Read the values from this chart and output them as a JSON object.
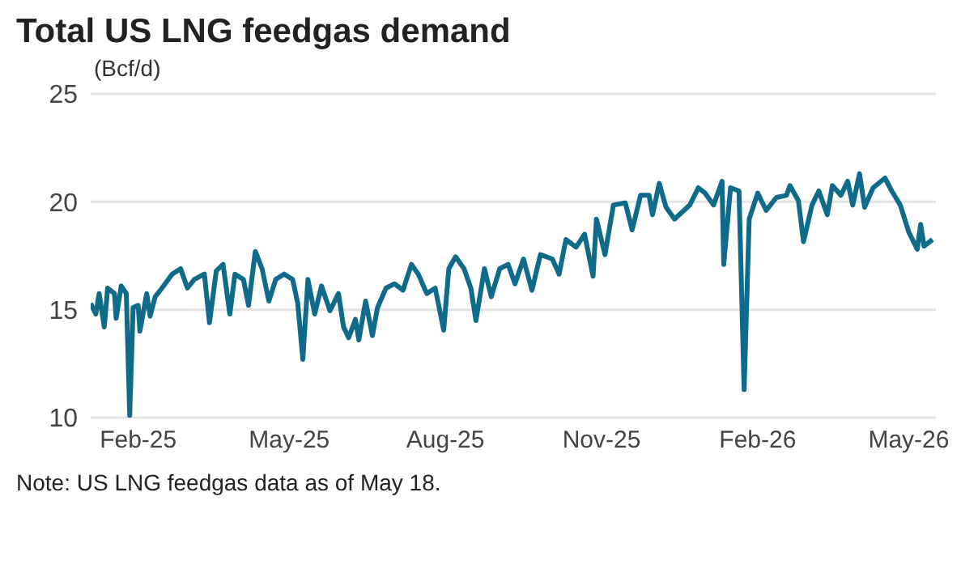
{
  "chart_data": {
    "type": "line",
    "title": "Total US LNG feedgas demand",
    "ylabel": "(Bcf/d)",
    "x": [
      "2025-01-04",
      "2025-01-07",
      "2025-01-09",
      "2025-01-12",
      "2025-01-14",
      "2025-01-18",
      "2025-01-19",
      "2025-01-22",
      "2025-01-25",
      "2025-01-27",
      "2025-01-29",
      "2025-02-01",
      "2025-02-02",
      "2025-02-06",
      "2025-02-08",
      "2025-02-11",
      "2025-02-15",
      "2025-02-21",
      "2025-02-26",
      "2025-03-02",
      "2025-03-06",
      "2025-03-12",
      "2025-03-15",
      "2025-03-19",
      "2025-03-23",
      "2025-03-27",
      "2025-03-30",
      "2025-04-04",
      "2025-04-07",
      "2025-04-11",
      "2025-04-15",
      "2025-04-19",
      "2025-04-23",
      "2025-04-28",
      "2025-05-03",
      "2025-05-06",
      "2025-05-09",
      "2025-05-12",
      "2025-05-16",
      "2025-05-20",
      "2025-05-25",
      "2025-05-30",
      "2025-06-02",
      "2025-06-05",
      "2025-06-09",
      "2025-06-11",
      "2025-06-15",
      "2025-06-19",
      "2025-06-22",
      "2025-06-27",
      "2025-07-02",
      "2025-07-07",
      "2025-07-12",
      "2025-07-16",
      "2025-07-21",
      "2025-07-26",
      "2025-07-31",
      "2025-08-03",
      "2025-08-07",
      "2025-08-12",
      "2025-08-16",
      "2025-08-19",
      "2025-08-24",
      "2025-08-28",
      "2025-09-02",
      "2025-09-07",
      "2025-09-11",
      "2025-09-16",
      "2025-09-21",
      "2025-09-26",
      "2025-10-03",
      "2025-10-07",
      "2025-10-11",
      "2025-10-17",
      "2025-10-22",
      "2025-10-27",
      "2025-10-29",
      "2025-11-03",
      "2025-11-08",
      "2025-11-15",
      "2025-11-19",
      "2025-11-24",
      "2025-11-29",
      "2025-12-01",
      "2025-12-05",
      "2025-12-09",
      "2025-12-14",
      "2025-12-23",
      "2025-12-28",
      "2026-01-01",
      "2026-01-06",
      "2026-01-11",
      "2026-01-12",
      "2026-01-16",
      "2026-01-21",
      "2026-01-24",
      "2026-01-27",
      "2026-02-01",
      "2026-02-06",
      "2026-02-12",
      "2026-02-18",
      "2026-02-20",
      "2026-02-25",
      "2026-02-28",
      "2026-03-05",
      "2026-03-09",
      "2026-03-14",
      "2026-03-17",
      "2026-03-22",
      "2026-03-26",
      "2026-03-29",
      "2026-04-02",
      "2026-04-05",
      "2026-04-10",
      "2026-04-17",
      "2026-04-21",
      "2026-04-26",
      "2026-05-01",
      "2026-05-06",
      "2026-05-08",
      "2026-05-10",
      "2026-05-15"
    ],
    "series": [
      {
        "color": "#0f6b89",
        "values": [
          15.3,
          14.8,
          15.75,
          14.2,
          16.0,
          15.75,
          14.6,
          16.1,
          15.75,
          10.1,
          15.1,
          15.2,
          14.0,
          15.75,
          14.7,
          15.6,
          16.0,
          16.65,
          16.9,
          16.0,
          16.4,
          16.65,
          14.4,
          16.8,
          17.1,
          14.8,
          16.65,
          16.4,
          15.2,
          17.7,
          16.9,
          15.4,
          16.4,
          16.65,
          16.4,
          15.3,
          12.7,
          16.4,
          14.8,
          16.1,
          14.95,
          15.75,
          14.2,
          13.7,
          14.55,
          13.6,
          15.4,
          13.8,
          15.1,
          16.0,
          16.2,
          15.9,
          17.1,
          16.65,
          15.75,
          16.0,
          14.05,
          16.9,
          17.45,
          16.9,
          16.0,
          14.5,
          16.9,
          15.6,
          16.9,
          17.1,
          16.2,
          17.35,
          15.9,
          17.55,
          17.35,
          16.65,
          18.25,
          17.9,
          18.5,
          16.55,
          19.2,
          17.55,
          19.85,
          19.95,
          18.7,
          20.3,
          20.3,
          19.4,
          20.85,
          19.75,
          19.2,
          19.85,
          20.65,
          20.4,
          19.85,
          20.95,
          17.1,
          20.65,
          20.5,
          11.3,
          19.2,
          20.4,
          19.6,
          20.2,
          20.3,
          20.75,
          20.05,
          18.15,
          19.85,
          20.5,
          19.4,
          20.75,
          20.3,
          20.95,
          19.85,
          21.3,
          19.75,
          20.65,
          21.1,
          20.5,
          19.85,
          18.6,
          17.8,
          18.95,
          17.95,
          18.25
        ]
      }
    ],
    "xlim": [
      "2025-01-04",
      "2026-05-17"
    ],
    "xticks": [
      {
        "value": "2025-02-01",
        "label": "Feb-25"
      },
      {
        "value": "2025-05-01",
        "label": "May-25"
      },
      {
        "value": "2025-08-01",
        "label": "Aug-25"
      },
      {
        "value": "2025-11-01",
        "label": "Nov-25"
      },
      {
        "value": "2026-02-01",
        "label": "Feb-26"
      },
      {
        "value": "2026-05-01",
        "label": "May-26"
      }
    ],
    "ylim": [
      10,
      25
    ],
    "yticks": [
      10,
      15,
      20,
      25
    ],
    "grid": "y",
    "marker": "none",
    "line_style": "solid",
    "annotations": [
      "Note: US LNG feedgas data as of May 18."
    ]
  }
}
